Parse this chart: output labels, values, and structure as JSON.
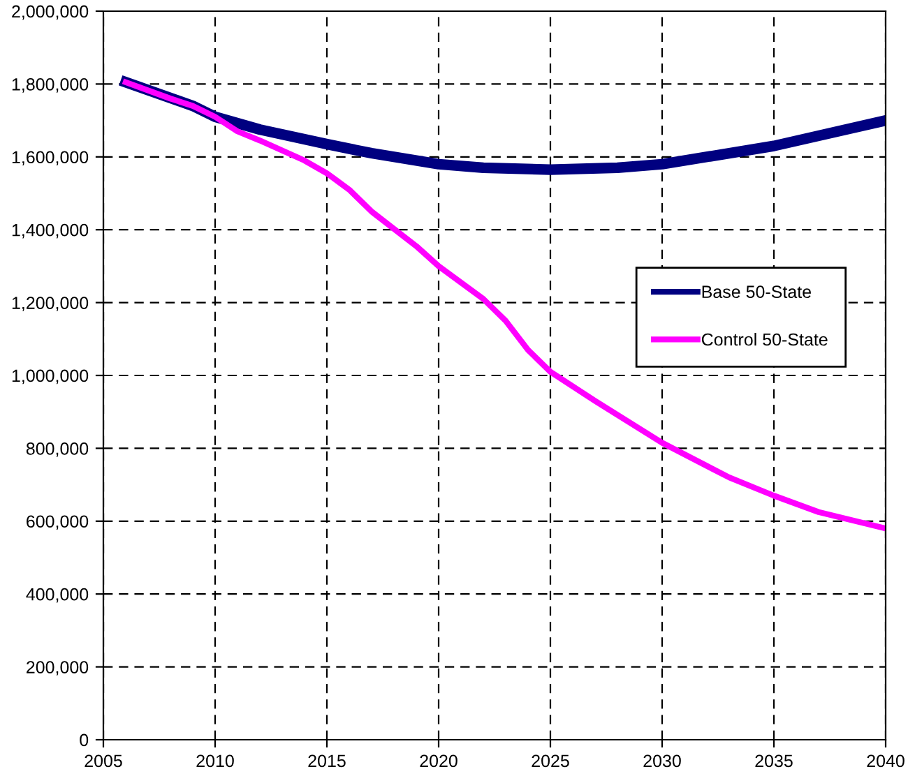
{
  "chart_data": {
    "type": "line",
    "xlim": [
      2005,
      2040
    ],
    "xticks": [
      2005,
      2010,
      2015,
      2020,
      2025,
      2030,
      2035,
      2040
    ],
    "ylim": [
      0,
      2000000
    ],
    "yticks": [
      {
        "value": 0,
        "label": "0"
      },
      {
        "value": 200000,
        "label": "200,000"
      },
      {
        "value": 400000,
        "label": "400,000"
      },
      {
        "value": 600000,
        "label": "600,000"
      },
      {
        "value": 800000,
        "label": "800,000"
      },
      {
        "value": 1000000,
        "label": "1,000,000"
      },
      {
        "value": 1200000,
        "label": "1,200,000"
      },
      {
        "value": 1400000,
        "label": "1,400,000"
      },
      {
        "value": 1600000,
        "label": "1,600,000"
      },
      {
        "value": 1800000,
        "label": "1,800,000"
      },
      {
        "value": 2000000,
        "label": "2,000,000"
      }
    ],
    "grid": true,
    "legend": "right",
    "marker": "none",
    "line_style": "solid",
    "series": [
      {
        "name": "Base 50-State",
        "color": "#000080",
        "x": [
          2006,
          2009,
          2010,
          2012,
          2015,
          2017,
          2020,
          2022,
          2025,
          2028,
          2030,
          2035,
          2040
        ],
        "values": [
          1805000,
          1740000,
          1710000,
          1675000,
          1635000,
          1610000,
          1580000,
          1570000,
          1565000,
          1570000,
          1580000,
          1630000,
          1700000
        ]
      },
      {
        "name": "Control 50-State",
        "color": "#ff00ff",
        "x": [
          2006,
          2008,
          2009,
          2010,
          2011,
          2012,
          2014,
          2015,
          2016,
          2017,
          2019,
          2020,
          2022,
          2023,
          2024,
          2025,
          2027,
          2030,
          2033,
          2035,
          2037,
          2040
        ],
        "values": [
          1805000,
          1760000,
          1740000,
          1710000,
          1670000,
          1645000,
          1590000,
          1555000,
          1510000,
          1450000,
          1355000,
          1300000,
          1210000,
          1150000,
          1070000,
          1010000,
          930000,
          815000,
          720000,
          670000,
          625000,
          580000
        ]
      }
    ]
  }
}
